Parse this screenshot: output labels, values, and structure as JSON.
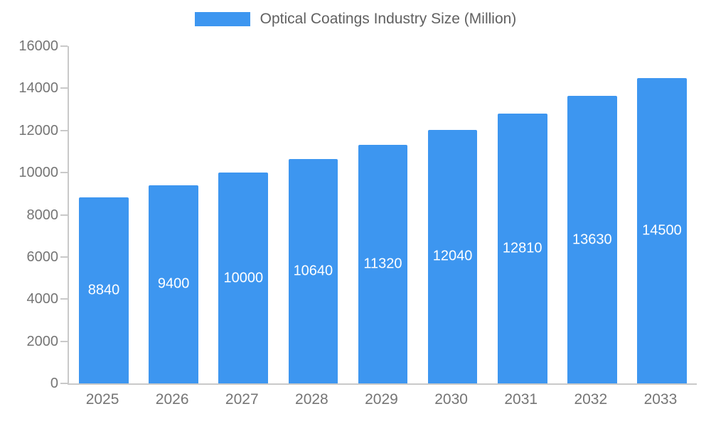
{
  "chart_data": {
    "type": "bar",
    "title": "Optical Coatings Industry Size (Million)",
    "categories": [
      "2025",
      "2026",
      "2027",
      "2028",
      "2029",
      "2030",
      "2031",
      "2032",
      "2033"
    ],
    "values": [
      8840,
      9400,
      10000,
      10640,
      11320,
      12040,
      12810,
      13630,
      14500
    ],
    "xlabel": "",
    "ylabel": "",
    "ylim": [
      0,
      16000
    ],
    "ytick_step": 2000,
    "grid": false,
    "legend_position": "top-center",
    "bar_color": "#3D96F0",
    "bar_label_color": "#ffffff",
    "axis_text_color": "#757575",
    "axis_line_color": "#c9c9c9",
    "background_color": "#ffffff"
  }
}
